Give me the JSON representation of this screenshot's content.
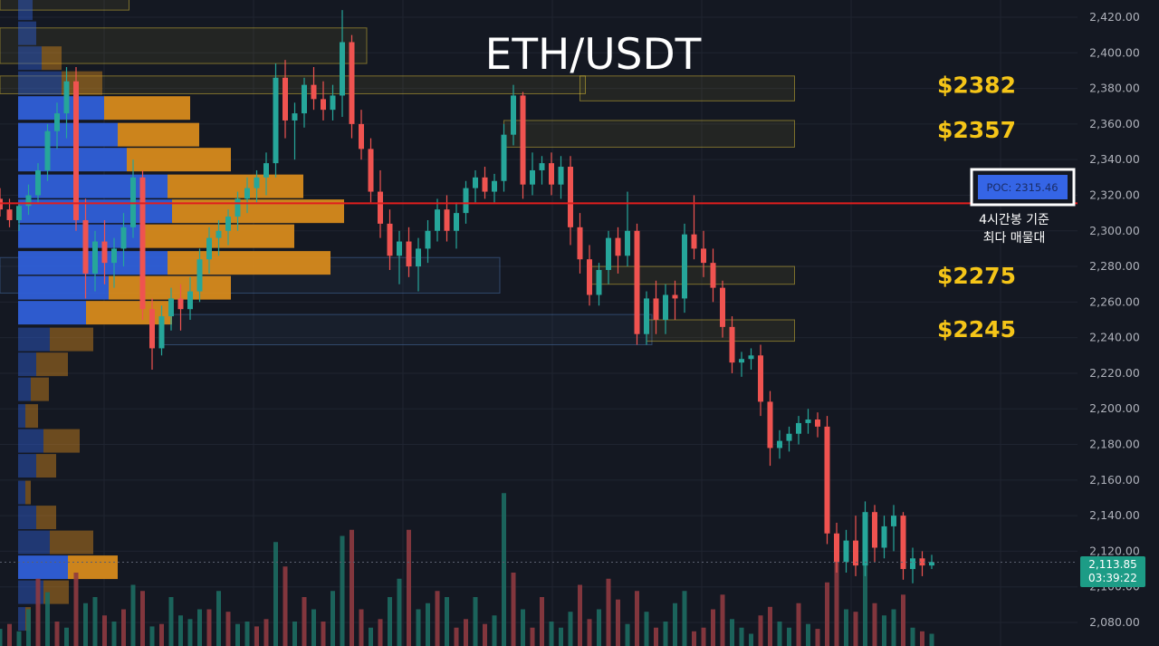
{
  "chart_title": "ETH/USDT",
  "colors": {
    "background": "#141822",
    "grid": "#1f2430",
    "up": "#26a69a",
    "down": "#ef5350",
    "volume_up": "#1c6b62",
    "volume_down": "#8e3a40",
    "vp_up": "#2f5fd8",
    "vp_down": "#d68a1c",
    "zone_yellow": "#f2d33a",
    "zone_blue": "#4f7fbf",
    "poc_line": "#e01e1e",
    "poc_box": "#3565e6",
    "level_label": "#f5c518",
    "price_tag": "#1d9c86"
  },
  "poc": {
    "label": "POC: 2315.46",
    "value": 2315.46,
    "note_line1": "4시간봉 기준",
    "note_line2": "최다 매물대"
  },
  "current_price": {
    "price_label": "2,113.85",
    "time_label": "03:39:22",
    "value": 2113.85
  },
  "levels": [
    {
      "label": "$2382",
      "value": 2382
    },
    {
      "label": "$2357",
      "value": 2357
    },
    {
      "label": "$2275",
      "value": 2275
    },
    {
      "label": "$2245",
      "value": 2245
    }
  ],
  "chart_data": {
    "type": "candlestick",
    "title": "ETH/USDT",
    "y_axis": {
      "ticks": [
        "2,420.00",
        "2,400.00",
        "2,380.00",
        "2,360.00",
        "2,340.00",
        "2,320.00",
        "2,300.00",
        "2,280.00",
        "2,260.00",
        "2,240.00",
        "2,220.00",
        "2,200.00",
        "2,180.00",
        "2,160.00",
        "2,140.00",
        "2,120.00",
        "2,100.00",
        "2,080.00"
      ],
      "range": [
        2072,
        2425
      ]
    },
    "ohlc": [
      [
        2318,
        2324,
        2308,
        2312
      ],
      [
        2312,
        2318,
        2302,
        2306
      ],
      [
        2306,
        2316,
        2300,
        2314
      ],
      [
        2314,
        2326,
        2309,
        2320
      ],
      [
        2320,
        2338,
        2316,
        2334
      ],
      [
        2334,
        2360,
        2328,
        2356
      ],
      [
        2356,
        2372,
        2346,
        2366
      ],
      [
        2366,
        2392,
        2352,
        2384
      ],
      [
        2384,
        2392,
        2300,
        2306
      ],
      [
        2306,
        2318,
        2262,
        2276
      ],
      [
        2276,
        2300,
        2266,
        2294
      ],
      [
        2294,
        2306,
        2270,
        2282
      ],
      [
        2282,
        2296,
        2268,
        2290
      ],
      [
        2290,
        2310,
        2280,
        2302
      ],
      [
        2302,
        2340,
        2296,
        2330
      ],
      [
        2330,
        2334,
        2250,
        2256
      ],
      [
        2256,
        2262,
        2222,
        2234
      ],
      [
        2234,
        2258,
        2230,
        2252
      ],
      [
        2252,
        2268,
        2244,
        2262
      ],
      [
        2262,
        2270,
        2244,
        2256
      ],
      [
        2256,
        2274,
        2250,
        2266
      ],
      [
        2266,
        2290,
        2260,
        2284
      ],
      [
        2284,
        2302,
        2276,
        2296
      ],
      [
        2296,
        2306,
        2286,
        2300
      ],
      [
        2300,
        2312,
        2292,
        2308
      ],
      [
        2308,
        2322,
        2300,
        2318
      ],
      [
        2318,
        2330,
        2310,
        2324
      ],
      [
        2324,
        2334,
        2316,
        2330
      ],
      [
        2330,
        2344,
        2320,
        2338
      ],
      [
        2338,
        2394,
        2330,
        2386
      ],
      [
        2386,
        2396,
        2352,
        2362
      ],
      [
        2362,
        2372,
        2340,
        2366
      ],
      [
        2366,
        2386,
        2358,
        2382
      ],
      [
        2382,
        2392,
        2368,
        2374
      ],
      [
        2374,
        2384,
        2362,
        2368
      ],
      [
        2368,
        2382,
        2362,
        2376
      ],
      [
        2376,
        2424,
        2364,
        2406
      ],
      [
        2406,
        2410,
        2352,
        2360
      ],
      [
        2360,
        2368,
        2340,
        2346
      ],
      [
        2346,
        2352,
        2316,
        2322
      ],
      [
        2322,
        2334,
        2296,
        2304
      ],
      [
        2304,
        2312,
        2278,
        2286
      ],
      [
        2286,
        2300,
        2270,
        2294
      ],
      [
        2294,
        2302,
        2274,
        2280
      ],
      [
        2280,
        2296,
        2266,
        2290
      ],
      [
        2290,
        2306,
        2282,
        2300
      ],
      [
        2300,
        2318,
        2294,
        2312
      ],
      [
        2312,
        2320,
        2294,
        2300
      ],
      [
        2300,
        2316,
        2290,
        2310
      ],
      [
        2310,
        2328,
        2304,
        2324
      ],
      [
        2324,
        2334,
        2316,
        2330
      ],
      [
        2330,
        2336,
        2318,
        2322
      ],
      [
        2322,
        2332,
        2316,
        2328
      ],
      [
        2328,
        2360,
        2322,
        2354
      ],
      [
        2354,
        2382,
        2348,
        2376
      ],
      [
        2376,
        2378,
        2318,
        2326
      ],
      [
        2326,
        2344,
        2320,
        2334
      ],
      [
        2334,
        2342,
        2326,
        2338
      ],
      [
        2338,
        2344,
        2320,
        2326
      ],
      [
        2326,
        2342,
        2318,
        2336
      ],
      [
        2336,
        2342,
        2292,
        2302
      ],
      [
        2302,
        2310,
        2276,
        2284
      ],
      [
        2284,
        2292,
        2258,
        2264
      ],
      [
        2264,
        2282,
        2258,
        2278
      ],
      [
        2278,
        2300,
        2270,
        2296
      ],
      [
        2296,
        2302,
        2276,
        2286
      ],
      [
        2286,
        2322,
        2280,
        2300
      ],
      [
        2300,
        2304,
        2236,
        2242
      ],
      [
        2242,
        2266,
        2236,
        2262
      ],
      [
        2262,
        2272,
        2242,
        2250
      ],
      [
        2250,
        2270,
        2242,
        2264
      ],
      [
        2264,
        2272,
        2250,
        2262
      ],
      [
        2262,
        2304,
        2254,
        2298
      ],
      [
        2298,
        2320,
        2284,
        2290
      ],
      [
        2290,
        2300,
        2274,
        2282
      ],
      [
        2282,
        2290,
        2260,
        2268
      ],
      [
        2268,
        2272,
        2240,
        2246
      ],
      [
        2246,
        2252,
        2220,
        2226
      ],
      [
        2226,
        2232,
        2218,
        2228
      ],
      [
        2228,
        2234,
        2222,
        2230
      ],
      [
        2230,
        2236,
        2196,
        2204
      ],
      [
        2204,
        2210,
        2168,
        2178
      ],
      [
        2178,
        2188,
        2172,
        2182
      ],
      [
        2182,
        2190,
        2176,
        2186
      ],
      [
        2186,
        2196,
        2180,
        2192
      ],
      [
        2192,
        2200,
        2186,
        2194
      ],
      [
        2194,
        2198,
        2184,
        2190
      ],
      [
        2190,
        2196,
        2124,
        2130
      ],
      [
        2130,
        2136,
        2108,
        2114
      ],
      [
        2114,
        2132,
        2108,
        2126
      ],
      [
        2126,
        2140,
        2106,
        2112
      ],
      [
        2112,
        2148,
        2106,
        2142
      ],
      [
        2142,
        2146,
        2114,
        2122
      ],
      [
        2122,
        2140,
        2116,
        2134
      ],
      [
        2134,
        2146,
        2120,
        2140
      ],
      [
        2140,
        2142,
        2104,
        2110
      ],
      [
        2110,
        2122,
        2102,
        2116
      ],
      [
        2116,
        2120,
        2106,
        2112
      ],
      [
        2112,
        2118,
        2110,
        2114
      ]
    ],
    "volume_profile": [
      {
        "price": 2425,
        "buy": 16,
        "sell": 0
      },
      {
        "price": 2411,
        "buy": 20,
        "sell": 0
      },
      {
        "price": 2397,
        "buy": 26,
        "sell": 22
      },
      {
        "price": 2383,
        "buy": 48,
        "sell": 45
      },
      {
        "price": 2369,
        "buy": 95,
        "sell": 95
      },
      {
        "price": 2354,
        "buy": 110,
        "sell": 90
      },
      {
        "price": 2340,
        "buy": 120,
        "sell": 115
      },
      {
        "price": 2325,
        "buy": 165,
        "sell": 150
      },
      {
        "price": 2311,
        "buy": 170,
        "sell": 190
      },
      {
        "price": 2297,
        "buy": 140,
        "sell": 165
      },
      {
        "price": 2282,
        "buy": 165,
        "sell": 180
      },
      {
        "price": 2268,
        "buy": 100,
        "sell": 135
      },
      {
        "price": 2254,
        "buy": 75,
        "sell": 95
      },
      {
        "price": 2239,
        "buy": 35,
        "sell": 48
      },
      {
        "price": 2225,
        "buy": 20,
        "sell": 35
      },
      {
        "price": 2211,
        "buy": 14,
        "sell": 20
      },
      {
        "price": 2196,
        "buy": 8,
        "sell": 14
      },
      {
        "price": 2182,
        "buy": 28,
        "sell": 40
      },
      {
        "price": 2168,
        "buy": 20,
        "sell": 22
      },
      {
        "price": 2153,
        "buy": 8,
        "sell": 6
      },
      {
        "price": 2139,
        "buy": 20,
        "sell": 22
      },
      {
        "price": 2125,
        "buy": 35,
        "sell": 48
      },
      {
        "price": 2111,
        "buy": 55,
        "sell": 55
      },
      {
        "price": 2097,
        "buy": 28,
        "sell": 28
      },
      {
        "price": 2082,
        "buy": 8,
        "sell": 6
      }
    ],
    "zones": [
      {
        "top": 2430,
        "bottom": 2424,
        "start": 0,
        "end": 13,
        "color": "yellow"
      },
      {
        "top": 2414,
        "bottom": 2394,
        "start": 0,
        "end": 38,
        "color": "yellow"
      },
      {
        "top": 2387,
        "bottom": 2377,
        "start": 0,
        "end": 61,
        "color": "yellow"
      },
      {
        "top": 2387,
        "bottom": 2373,
        "start": 61,
        "end": 83,
        "color": "yellow"
      },
      {
        "top": 2362,
        "bottom": 2347,
        "start": 53,
        "end": 83,
        "color": "yellow"
      },
      {
        "top": 2285,
        "bottom": 2265,
        "start": 0,
        "end": 52,
        "color": "blue"
      },
      {
        "top": 2280,
        "bottom": 2270,
        "start": 62,
        "end": 83,
        "color": "yellow"
      },
      {
        "top": 2253,
        "bottom": 2236,
        "start": 17,
        "end": 68,
        "color": "blue"
      },
      {
        "top": 2250,
        "bottom": 2238,
        "start": 68,
        "end": 83,
        "color": "yellow"
      }
    ],
    "volume": [
      [
        14,
        1
      ],
      [
        18,
        0
      ],
      [
        12,
        1
      ],
      [
        30,
        1
      ],
      [
        55,
        0
      ],
      [
        44,
        1
      ],
      [
        20,
        0
      ],
      [
        15,
        1
      ],
      [
        60,
        0
      ],
      [
        35,
        1
      ],
      [
        40,
        1
      ],
      [
        25,
        0
      ],
      [
        20,
        1
      ],
      [
        30,
        0
      ],
      [
        50,
        1
      ],
      [
        45,
        0
      ],
      [
        16,
        1
      ],
      [
        18,
        0
      ],
      [
        40,
        1
      ],
      [
        25,
        1
      ],
      [
        22,
        1
      ],
      [
        30,
        1
      ],
      [
        30,
        0
      ],
      [
        45,
        1
      ],
      [
        28,
        0
      ],
      [
        18,
        1
      ],
      [
        20,
        1
      ],
      [
        16,
        0
      ],
      [
        22,
        0
      ],
      [
        85,
        1
      ],
      [
        65,
        0
      ],
      [
        20,
        1
      ],
      [
        40,
        0
      ],
      [
        30,
        1
      ],
      [
        20,
        0
      ],
      [
        45,
        1
      ],
      [
        90,
        1
      ],
      [
        95,
        0
      ],
      [
        30,
        0
      ],
      [
        15,
        1
      ],
      [
        22,
        0
      ],
      [
        40,
        1
      ],
      [
        55,
        1
      ],
      [
        95,
        0
      ],
      [
        30,
        1
      ],
      [
        35,
        1
      ],
      [
        45,
        0
      ],
      [
        40,
        1
      ],
      [
        15,
        0
      ],
      [
        22,
        0
      ],
      [
        40,
        1
      ],
      [
        18,
        0
      ],
      [
        25,
        1
      ],
      [
        125,
        1
      ],
      [
        60,
        0
      ],
      [
        30,
        1
      ],
      [
        15,
        0
      ],
      [
        40,
        0
      ],
      [
        20,
        1
      ],
      [
        15,
        1
      ],
      [
        28,
        1
      ],
      [
        50,
        0
      ],
      [
        22,
        0
      ],
      [
        30,
        1
      ],
      [
        55,
        0
      ],
      [
        38,
        0
      ],
      [
        18,
        1
      ],
      [
        45,
        0
      ],
      [
        28,
        1
      ],
      [
        15,
        0
      ],
      [
        20,
        1
      ],
      [
        35,
        1
      ],
      [
        45,
        1
      ],
      [
        12,
        0
      ],
      [
        15,
        0
      ],
      [
        30,
        0
      ],
      [
        42,
        0
      ],
      [
        22,
        1
      ],
      [
        15,
        1
      ],
      [
        10,
        1
      ],
      [
        25,
        0
      ],
      [
        32,
        0
      ],
      [
        20,
        1
      ],
      [
        15,
        1
      ],
      [
        35,
        0
      ],
      [
        18,
        1
      ],
      [
        14,
        0
      ],
      [
        52,
        0
      ],
      [
        70,
        0
      ],
      [
        30,
        1
      ],
      [
        28,
        0
      ],
      [
        95,
        1
      ],
      [
        35,
        0
      ],
      [
        25,
        1
      ],
      [
        30,
        1
      ],
      [
        42,
        0
      ],
      [
        15,
        1
      ],
      [
        12,
        0
      ],
      [
        10,
        1
      ]
    ]
  }
}
